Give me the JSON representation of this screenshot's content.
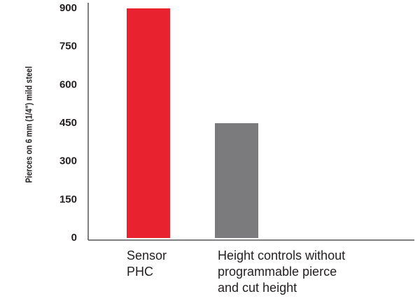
{
  "chart_data": {
    "type": "bar",
    "y_label": "Pierces on 6 mm (1/4\") mild steel",
    "categories": [
      [
        "Sensor",
        "PHC"
      ],
      [
        "Height controls without",
        "programmable pierce",
        "and cut height"
      ]
    ],
    "values": [
      900,
      450
    ],
    "colors": [
      "#e8232f",
      "#7b7b7e"
    ],
    "ylim": [
      0,
      900
    ],
    "yticks": [
      0,
      150,
      300,
      450,
      600,
      750,
      900
    ],
    "grid": false
  }
}
